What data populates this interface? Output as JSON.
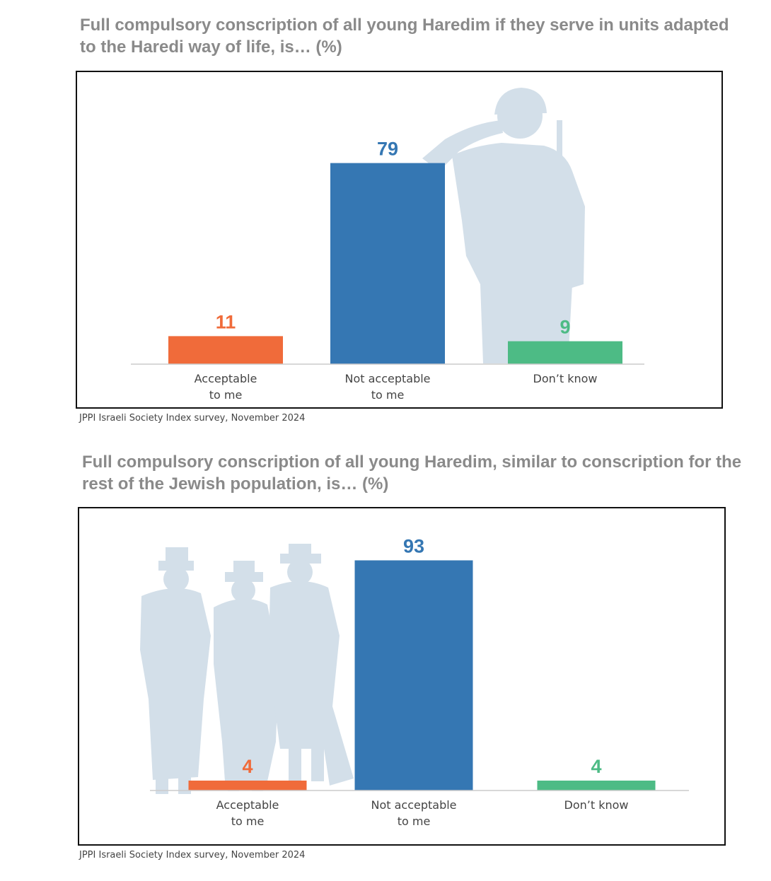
{
  "charts": [
    {
      "title": "Full compulsory conscription of all young Haredim if they serve in units adapted to the Haredi way of life, is… (%)",
      "source": "JPPI Israeli Society Index survey, November 2024"
    },
    {
      "title": "Full compulsory conscription of all young Haredim, similar to conscription for the rest of the Jewish population, is… (%)",
      "source": "JPPI Israeli Society Index survey, November 2024"
    }
  ],
  "chart_data": [
    {
      "type": "bar",
      "title": "Full compulsory conscription of all young Haredim if they serve in units adapted to the Haredi way of life, is… (%)",
      "categories": [
        [
          "Acceptable",
          "to me"
        ],
        [
          "Not acceptable",
          "to me"
        ],
        [
          "Don’t know"
        ]
      ],
      "values": [
        11,
        79,
        9
      ],
      "colors": [
        "#f06b3a",
        "#3577b3",
        "#4dbb85"
      ],
      "ylim": [
        0,
        100
      ],
      "grid": false,
      "legend": "none",
      "background_image": "soldier-saluting-silhouette"
    },
    {
      "type": "bar",
      "title": "Full compulsory conscription of all young Haredim, similar to conscription for the rest of the Jewish population, is… (%)",
      "categories": [
        [
          "Acceptable",
          "to me"
        ],
        [
          "Not acceptable",
          "to me"
        ],
        [
          "Don’t know"
        ]
      ],
      "values": [
        4,
        93,
        4
      ],
      "colors": [
        "#f06b3a",
        "#3577b3",
        "#4dbb85"
      ],
      "ylim": [
        0,
        100
      ],
      "grid": false,
      "legend": "none",
      "background_image": "haredi-men-silhouette"
    }
  ]
}
